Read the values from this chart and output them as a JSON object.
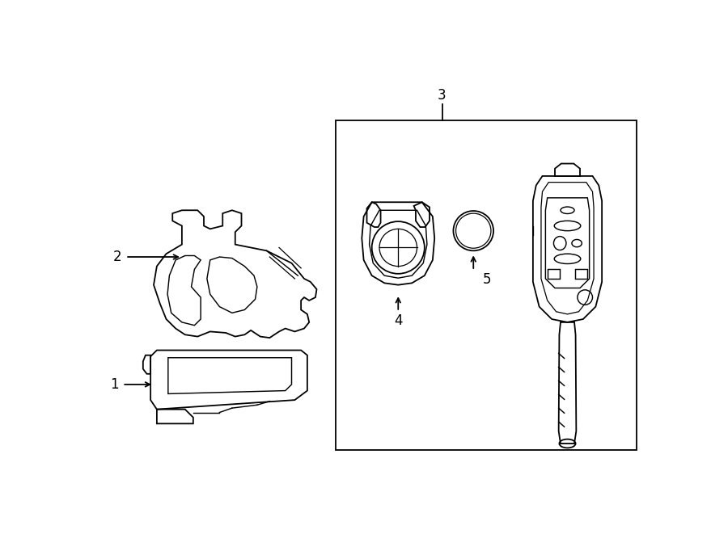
{
  "title": "",
  "subtitle": "",
  "bg_color": "#ffffff",
  "line_color": "#000000",
  "fig_width": 9.0,
  "fig_height": 6.61,
  "dpi": 100
}
